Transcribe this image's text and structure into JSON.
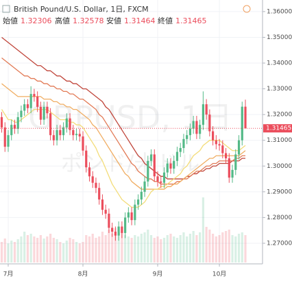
{
  "chart_data": {
    "type": "candlestick",
    "title": "British Pound/U.S. Dollar, 1日, FXCM",
    "header_labels": {
      "open": "始値",
      "high": "高値",
      "low": "安値",
      "close": "終値"
    },
    "watermark": "GBPUSD, 1日",
    "watermark_sub": "ポンド/米ドル",
    "categories": [
      null,
      null,
      "7月",
      null,
      null,
      null,
      null,
      null,
      null,
      null,
      null,
      null,
      null,
      null,
      null,
      null,
      null,
      null,
      null,
      null,
      null,
      null,
      null,
      null,
      null,
      "8月",
      null,
      null,
      null,
      null,
      null,
      null,
      null,
      null,
      null,
      null,
      null,
      null,
      null,
      null,
      null,
      null,
      null,
      null,
      null,
      null,
      null,
      null,
      "9月",
      null,
      null,
      null,
      null,
      null,
      null,
      null,
      null,
      null,
      null,
      null,
      null,
      null,
      null,
      null,
      null,
      null,
      null,
      "10月",
      null,
      null,
      null,
      null,
      null,
      null,
      null,
      null
    ],
    "open": [
      1.319,
      1.315,
      1.3075,
      1.312,
      1.316,
      1.3145,
      1.319,
      1.3215,
      1.324,
      1.3225,
      1.328,
      1.327,
      1.323,
      1.318,
      1.323,
      1.3205,
      1.312,
      1.31,
      1.314,
      1.312,
      1.315,
      1.3185,
      1.314,
      1.312,
      1.3125,
      1.3115,
      1.306,
      1.2995,
      1.296,
      1.2935,
      1.2915,
      1.287,
      1.283,
      1.2815,
      1.276,
      1.2745,
      1.273,
      1.2765,
      1.274,
      1.28,
      1.282,
      1.279,
      1.285,
      1.287,
      1.29,
      1.294,
      1.302,
      1.3045,
      1.296,
      1.294,
      1.2935,
      1.2975,
      1.301,
      1.299,
      1.302,
      1.3055,
      1.307,
      1.3105,
      1.312,
      1.3145,
      1.3175,
      1.3125,
      1.316,
      1.324,
      1.32,
      1.3135,
      1.31,
      1.3085,
      1.308,
      1.305,
      1.303,
      1.2955,
      1.2985,
      1.3045,
      1.31,
      1.32306
    ],
    "high": [
      1.321,
      1.317,
      1.314,
      1.318,
      1.318,
      1.321,
      1.3235,
      1.326,
      1.326,
      1.331,
      1.33,
      1.329,
      1.325,
      1.325,
      1.325,
      1.3225,
      1.314,
      1.316,
      1.316,
      1.317,
      1.3205,
      1.3205,
      1.316,
      1.3145,
      1.3145,
      1.3135,
      1.308,
      1.3015,
      1.298,
      1.2955,
      1.2935,
      1.289,
      1.285,
      1.2835,
      1.278,
      1.2765,
      1.2785,
      1.2785,
      1.282,
      1.284,
      1.284,
      1.287,
      1.289,
      1.292,
      1.296,
      1.304,
      1.3065,
      1.3065,
      1.298,
      1.296,
      1.2995,
      1.303,
      1.303,
      1.304,
      1.3075,
      1.309,
      1.3125,
      1.314,
      1.3165,
      1.3195,
      1.3195,
      1.318,
      1.329,
      1.326,
      1.322,
      1.3155,
      1.312,
      1.3105,
      1.31,
      1.307,
      1.305,
      1.3005,
      1.3065,
      1.312,
      1.325,
      1.32578
    ],
    "low": [
      1.313,
      1.3055,
      1.3055,
      1.31,
      1.3125,
      1.3125,
      1.317,
      1.3195,
      1.3205,
      1.3205,
      1.325,
      1.321,
      1.316,
      1.316,
      1.3185,
      1.31,
      1.308,
      1.308,
      1.31,
      1.31,
      1.313,
      1.312,
      1.31,
      1.31,
      1.3095,
      1.304,
      1.2975,
      1.294,
      1.2915,
      1.2895,
      1.285,
      1.281,
      1.2795,
      1.274,
      1.2725,
      1.271,
      1.271,
      1.272,
      1.272,
      1.278,
      1.277,
      1.277,
      1.283,
      1.285,
      1.288,
      1.292,
      1.3,
      1.294,
      1.292,
      1.2915,
      1.2915,
      1.2955,
      1.297,
      1.297,
      1.3,
      1.3035,
      1.305,
      1.3085,
      1.31,
      1.3125,
      1.3105,
      1.3105,
      1.314,
      1.318,
      1.3115,
      1.308,
      1.3065,
      1.306,
      1.303,
      1.301,
      1.2935,
      1.2935,
      1.2965,
      1.3025,
      1.308,
      1.31464
    ],
    "close": [
      1.315,
      1.3075,
      1.312,
      1.316,
      1.3145,
      1.319,
      1.3215,
      1.324,
      1.3225,
      1.328,
      1.327,
      1.323,
      1.318,
      1.323,
      1.3205,
      1.312,
      1.31,
      1.314,
      1.312,
      1.315,
      1.3185,
      1.314,
      1.312,
      1.3125,
      1.3115,
      1.306,
      1.2995,
      1.296,
      1.2935,
      1.2915,
      1.287,
      1.283,
      1.2815,
      1.276,
      1.2745,
      1.273,
      1.2765,
      1.274,
      1.28,
      1.282,
      1.279,
      1.285,
      1.287,
      1.29,
      1.294,
      1.302,
      1.3045,
      1.296,
      1.294,
      1.2935,
      1.2975,
      1.301,
      1.299,
      1.302,
      1.3055,
      1.307,
      1.3105,
      1.312,
      1.3145,
      1.3175,
      1.3125,
      1.316,
      1.324,
      1.32,
      1.3135,
      1.31,
      1.3085,
      1.308,
      1.305,
      1.303,
      1.2955,
      1.2985,
      1.3045,
      1.31,
      1.32306,
      1.31465
    ],
    "volume": [
      30,
      35,
      28,
      32,
      30,
      34,
      38,
      45,
      40,
      42,
      38,
      36,
      40,
      35,
      38,
      42,
      36,
      34,
      30,
      28,
      32,
      36,
      34,
      30,
      28,
      30,
      40,
      38,
      42,
      36,
      38,
      45,
      40,
      48,
      42,
      50,
      44,
      46,
      40,
      38,
      36,
      40,
      38,
      42,
      44,
      48,
      40,
      36,
      38,
      34,
      36,
      40,
      42,
      38,
      36,
      40,
      44,
      38,
      42,
      46,
      40,
      44,
      95,
      52,
      48,
      42,
      38,
      40,
      44,
      46,
      48,
      40,
      38,
      42,
      44,
      40
    ],
    "up_color": "#53b987",
    "down_color": "#eb4d5c",
    "series": [
      {
        "color": "#c0453a",
        "values": [
          1.35,
          1.349,
          1.348,
          1.347,
          1.346,
          1.345,
          1.344,
          1.343,
          1.342,
          1.341,
          1.34,
          1.339,
          1.339,
          1.338,
          1.337,
          1.337,
          1.336,
          1.335,
          1.335,
          1.334,
          1.333,
          1.333,
          1.332,
          1.332,
          1.331,
          1.33,
          1.33,
          1.329,
          1.328,
          1.327,
          1.326,
          1.325,
          1.323,
          1.322,
          1.32,
          1.318,
          1.316,
          1.314,
          1.312,
          1.31,
          1.308,
          1.306,
          1.304,
          1.303,
          1.301,
          1.3,
          1.299,
          1.298,
          1.297,
          1.296,
          1.296,
          1.295,
          1.295,
          1.295,
          1.295,
          1.295,
          1.295,
          1.296,
          1.296,
          1.297,
          1.297,
          1.298,
          1.298,
          1.299,
          1.299,
          1.3,
          1.3,
          1.301,
          1.301,
          1.301,
          1.301,
          1.302,
          1.302,
          1.302,
          1.303,
          1.303
        ]
      },
      {
        "color": "#e27a55",
        "values": [
          1.342,
          1.341,
          1.34,
          1.339,
          1.338,
          1.337,
          1.336,
          1.335,
          1.335,
          1.334,
          1.334,
          1.333,
          1.333,
          1.332,
          1.332,
          1.331,
          1.331,
          1.33,
          1.33,
          1.329,
          1.329,
          1.328,
          1.328,
          1.327,
          1.326,
          1.326,
          1.325,
          1.324,
          1.323,
          1.322,
          1.32,
          1.319,
          1.317,
          1.315,
          1.313,
          1.311,
          1.309,
          1.307,
          1.305,
          1.303,
          1.301,
          1.3,
          1.298,
          1.297,
          1.296,
          1.295,
          1.295,
          1.294,
          1.294,
          1.293,
          1.293,
          1.293,
          1.293,
          1.293,
          1.294,
          1.294,
          1.295,
          1.295,
          1.296,
          1.297,
          1.298,
          1.298,
          1.299,
          1.3,
          1.3,
          1.301,
          1.301,
          1.302,
          1.302,
          1.302,
          1.302,
          1.302,
          1.303,
          1.303,
          1.304,
          1.304
        ]
      },
      {
        "color": "#f0ad62",
        "values": [
          1.332,
          1.331,
          1.33,
          1.329,
          1.328,
          1.327,
          1.327,
          1.327,
          1.327,
          1.327,
          1.327,
          1.327,
          1.327,
          1.326,
          1.326,
          1.326,
          1.325,
          1.325,
          1.324,
          1.324,
          1.323,
          1.323,
          1.322,
          1.322,
          1.321,
          1.32,
          1.319,
          1.318,
          1.316,
          1.315,
          1.313,
          1.311,
          1.309,
          1.307,
          1.305,
          1.303,
          1.301,
          1.299,
          1.297,
          1.296,
          1.294,
          1.293,
          1.292,
          1.291,
          1.291,
          1.291,
          1.291,
          1.291,
          1.291,
          1.291,
          1.291,
          1.292,
          1.292,
          1.293,
          1.293,
          1.294,
          1.295,
          1.296,
          1.297,
          1.298,
          1.299,
          1.3,
          1.301,
          1.302,
          1.303,
          1.303,
          1.304,
          1.304,
          1.304,
          1.304,
          1.304,
          1.304,
          1.304,
          1.304,
          1.305,
          1.306
        ]
      },
      {
        "color": "#f3dc78",
        "values": [
          1.322,
          1.32,
          1.318,
          1.318,
          1.317,
          1.317,
          1.318,
          1.319,
          1.32,
          1.321,
          1.322,
          1.322,
          1.322,
          1.322,
          1.322,
          1.321,
          1.32,
          1.319,
          1.318,
          1.318,
          1.318,
          1.317,
          1.317,
          1.316,
          1.316,
          1.315,
          1.313,
          1.311,
          1.309,
          1.307,
          1.304,
          1.302,
          1.299,
          1.296,
          1.293,
          1.291,
          1.289,
          1.287,
          1.286,
          1.285,
          1.284,
          1.284,
          1.284,
          1.285,
          1.286,
          1.288,
          1.29,
          1.291,
          1.291,
          1.292,
          1.292,
          1.293,
          1.294,
          1.295,
          1.296,
          1.297,
          1.299,
          1.3,
          1.302,
          1.304,
          1.305,
          1.306,
          1.308,
          1.309,
          1.31,
          1.31,
          1.31,
          1.31,
          1.309,
          1.308,
          1.307,
          1.306,
          1.306,
          1.306,
          1.307,
          1.308
        ]
      }
    ],
    "ylim": [
      1.262,
      1.3645
    ],
    "yticks": [
      {
        "value": 1.27,
        "label": "1.27000"
      },
      {
        "value": 1.28,
        "label": "1.28000"
      },
      {
        "value": 1.29,
        "label": "1.29000"
      },
      {
        "value": 1.3,
        "label": "1.30000"
      },
      {
        "value": 1.31,
        "label": "1.31000"
      },
      {
        "value": 1.32,
        "label": "1.32000"
      },
      {
        "value": 1.33,
        "label": "1.33000"
      },
      {
        "value": 1.34,
        "label": "1.34000"
      },
      {
        "value": 1.35,
        "label": "1.35000"
      },
      {
        "value": 1.36,
        "label": "1.36000"
      }
    ],
    "grid": true
  }
}
